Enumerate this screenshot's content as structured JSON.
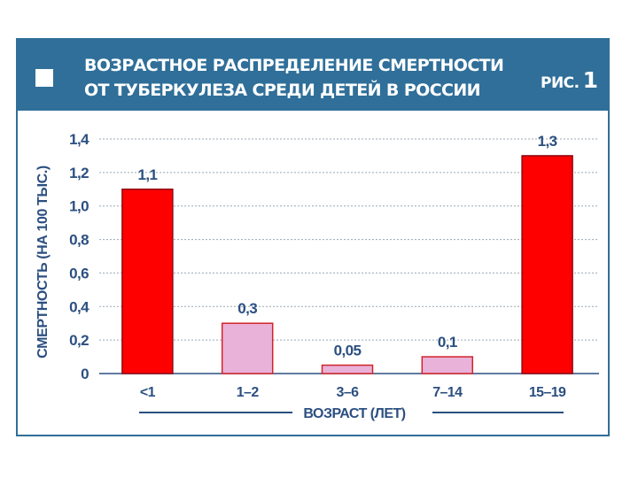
{
  "header": {
    "title_line1": "ВОЗРАСТНОЕ РАСПРЕДЕЛЕНИЕ СМЕРТНОСТИ",
    "title_line2": "ОТ ТУБЕРКУЛЕЗА СРЕДИ ДЕТЕЙ В РОССИИ",
    "figure_label": "РИС.",
    "figure_number": "1"
  },
  "colors": {
    "frame": "#2f6f99",
    "text": "#2b4f80",
    "bar_high": "#ff0000",
    "bar_low": "#e9b2d8",
    "bar_outline": "#d2232a"
  },
  "chart_data": {
    "type": "bar",
    "categories": [
      "<1",
      "1–2",
      "3–6",
      "7–14",
      "15–19"
    ],
    "values": [
      1.1,
      0.3,
      0.05,
      0.1,
      1.3
    ],
    "data_labels": [
      "1,1",
      "0,3",
      "0,05",
      "0,1",
      "1,3"
    ],
    "bar_styles": [
      "high",
      "low",
      "low",
      "low",
      "high"
    ],
    "ylim": [
      0,
      1.4
    ],
    "yticks": [
      {
        "value": 0,
        "label": "0"
      },
      {
        "value": 0.2,
        "label": "0,2"
      },
      {
        "value": 0.4,
        "label": "0,4"
      },
      {
        "value": 0.6,
        "label": "0,6"
      },
      {
        "value": 0.8,
        "label": "0,8"
      },
      {
        "value": 1.0,
        "label": "1,0"
      },
      {
        "value": 1.2,
        "label": "1,2"
      },
      {
        "value": 1.4,
        "label": "1,4"
      }
    ],
    "ylabel": "СМЕРТНОСТЬ (НА 100 ТЫС.)",
    "xlabel": "ВОЗРАСТ (ЛЕТ)",
    "grid": true
  }
}
